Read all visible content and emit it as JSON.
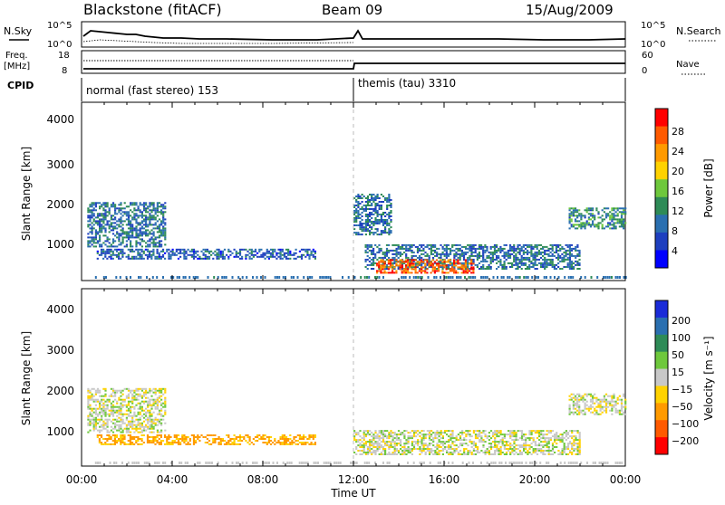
{
  "header": {
    "radar": "Blackstone (fitACF)",
    "beam": "Beam 09",
    "date": "15/Aug/2009"
  },
  "summary": {
    "nsky_label": "N.Sky",
    "nsearch_label": "N.Search",
    "nave_label": "Nave",
    "freq_label_1": "Freq.",
    "freq_label_2": "[MHz]",
    "cpid_label": "CPID",
    "left_ticks_top": [
      "10^5",
      "10^0"
    ],
    "right_ticks_top": [
      "10^5",
      "10^0"
    ],
    "freq_ticks": [
      "18",
      "8"
    ],
    "nave_ticks": [
      "60",
      "0"
    ],
    "cpid_1": "normal (fast stereo) 153",
    "cpid_2": "themis (tau) 3310"
  },
  "power_colorbar": {
    "label": "Power [dB]",
    "ticks": [
      "28",
      "24",
      "20",
      "16",
      "12",
      "8",
      "4"
    ],
    "colors": [
      "#ff0000",
      "#ff5a00",
      "#ff9a00",
      "#ffd200",
      "#6ec83c",
      "#2e8b57",
      "#2a6fb0",
      "#1e3fbf",
      "#0000ff"
    ]
  },
  "velocity_colorbar": {
    "label": "Velocity [m s⁻¹]",
    "ticks": [
      "200",
      "100",
      "50",
      "15",
      "−15",
      "−50",
      "−100",
      "−200"
    ],
    "colors": [
      "#1a2bd8",
      "#2a6fb0",
      "#2e8b57",
      "#6ec83c",
      "#c8c8c8",
      "#ffd200",
      "#ff9a00",
      "#ff5a00",
      "#ff0000"
    ]
  },
  "axes": {
    "ylabel": "Slant Range [km]",
    "xlabel": "Time UT",
    "yticks": [
      "4000",
      "3000",
      "2000",
      "1000"
    ],
    "xticks": [
      "00:00",
      "04:00",
      "08:00",
      "12:00",
      "16:00",
      "20:00",
      "00:00"
    ]
  },
  "chart_data": [
    {
      "type": "heatmap",
      "title": "",
      "xlabel": "Time UT",
      "ylabel": "Slant Range [km]",
      "y_unit": "km",
      "ylim": [
        180,
        4600
      ],
      "x_ticks": [
        "00:00",
        "04:00",
        "08:00",
        "12:00",
        "16:00",
        "20:00",
        "00:00"
      ],
      "colorbar": {
        "label": "Power [dB]",
        "range": [
          0,
          30
        ]
      },
      "regions": [
        {
          "t_start": "00:15",
          "t_end": "03:40",
          "range_km": [
            1000,
            2100
          ],
          "value_dB": 8
        },
        {
          "t_start": "00:40",
          "t_end": "10:20",
          "range_km": [
            700,
            950
          ],
          "value_dB": 6
        },
        {
          "t_start": "12:00",
          "t_end": "13:40",
          "range_km": [
            1300,
            2300
          ],
          "value_dB": 8
        },
        {
          "t_start": "12:30",
          "t_end": "22:00",
          "range_km": [
            450,
            1050
          ],
          "value_dB": 8
        },
        {
          "t_start": "13:00",
          "t_end": "17:20",
          "range_km": [
            350,
            700
          ],
          "value_dB": 26
        },
        {
          "t_start": "21:30",
          "t_end": "24:00",
          "range_km": [
            1450,
            1950
          ],
          "value_dB": 10
        }
      ]
    },
    {
      "type": "heatmap",
      "title": "",
      "xlabel": "Time UT",
      "ylabel": "Slant Range [km]",
      "y_unit": "km",
      "ylim": [
        180,
        4600
      ],
      "x_ticks": [
        "00:00",
        "04:00",
        "08:00",
        "12:00",
        "16:00",
        "20:00",
        "00:00"
      ],
      "colorbar": {
        "label": "Velocity [m s⁻¹]",
        "range": [
          -250,
          250
        ]
      },
      "regions": [
        {
          "t_start": "00:15",
          "t_end": "03:40",
          "range_km": [
            1000,
            2100
          ],
          "value_ms": 0
        },
        {
          "t_start": "00:40",
          "t_end": "10:20",
          "range_km": [
            700,
            950
          ],
          "value_ms": -60
        },
        {
          "t_start": "12:00",
          "t_end": "22:00",
          "range_km": [
            450,
            1050
          ],
          "value_ms": 0
        },
        {
          "t_start": "21:30",
          "t_end": "24:00",
          "range_km": [
            1450,
            1950
          ],
          "value_ms": 0
        }
      ]
    }
  ]
}
